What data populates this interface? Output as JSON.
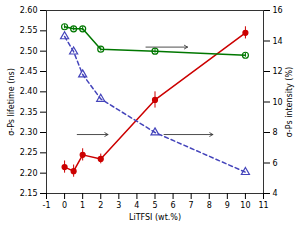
{
  "chart_data": {
    "type": "line",
    "xlabel": "LiTFSI (wt.%)",
    "ylabel": "σ-Ps lifetime (ns)",
    "y2label": "σ-Ps intensity (%)",
    "x": [
      0,
      0.5,
      1.0,
      2.0,
      5.0,
      10.0
    ],
    "series": [
      {
        "color": "#cc0000",
        "marker": "filled_circle",
        "line_style": "solid",
        "values": [
          2.215,
          2.205,
          2.245,
          2.235,
          2.38,
          2.545
        ],
        "errors": [
          0.015,
          0.015,
          0.015,
          0.012,
          0.02,
          0.015
        ]
      },
      {
        "color": "#007700",
        "marker": "open_circle",
        "line_style": "solid",
        "values": [
          2.56,
          2.555,
          2.555,
          2.505,
          2.5,
          2.49
        ],
        "errors": [
          0.005,
          0.005,
          0.005,
          0.005,
          0.005,
          0.005
        ]
      },
      {
        "color": "#4444bb",
        "marker": "open_triangle",
        "line_style": "dashed",
        "axis": "y2",
        "values": [
          14.3,
          13.3,
          11.8,
          10.2,
          8.0,
          5.4
        ]
      }
    ],
    "xlim": [
      -1,
      11
    ],
    "xticks": [
      -1,
      0,
      1,
      2,
      3,
      4,
      5,
      6,
      7,
      8,
      9,
      10,
      11
    ],
    "ylim": [
      2.15,
      2.6
    ],
    "yticks": [
      2.15,
      {
        "value": 2.2,
        "label": "2.20"
      },
      2.25,
      {
        "value": 2.3,
        "label": "2.30"
      },
      2.35,
      {
        "value": 2.4,
        "label": "2.40"
      },
      2.45,
      {
        "value": 2.5,
        "label": "2.50"
      },
      2.55,
      {
        "value": 2.6,
        "label": "2.60"
      }
    ],
    "y2lim": [
      4,
      16
    ],
    "y2ticks": [
      4,
      6,
      8,
      10,
      12,
      14,
      16
    ],
    "arrows": [
      {
        "x1": 0.7,
        "x2": 2.4,
        "y": 2.295
      },
      {
        "x1": 5.5,
        "x2": 8.2,
        "y": 2.295
      },
      {
        "x1": 4.5,
        "x2": 6.8,
        "y": 2.51
      }
    ],
    "grid": false
  }
}
